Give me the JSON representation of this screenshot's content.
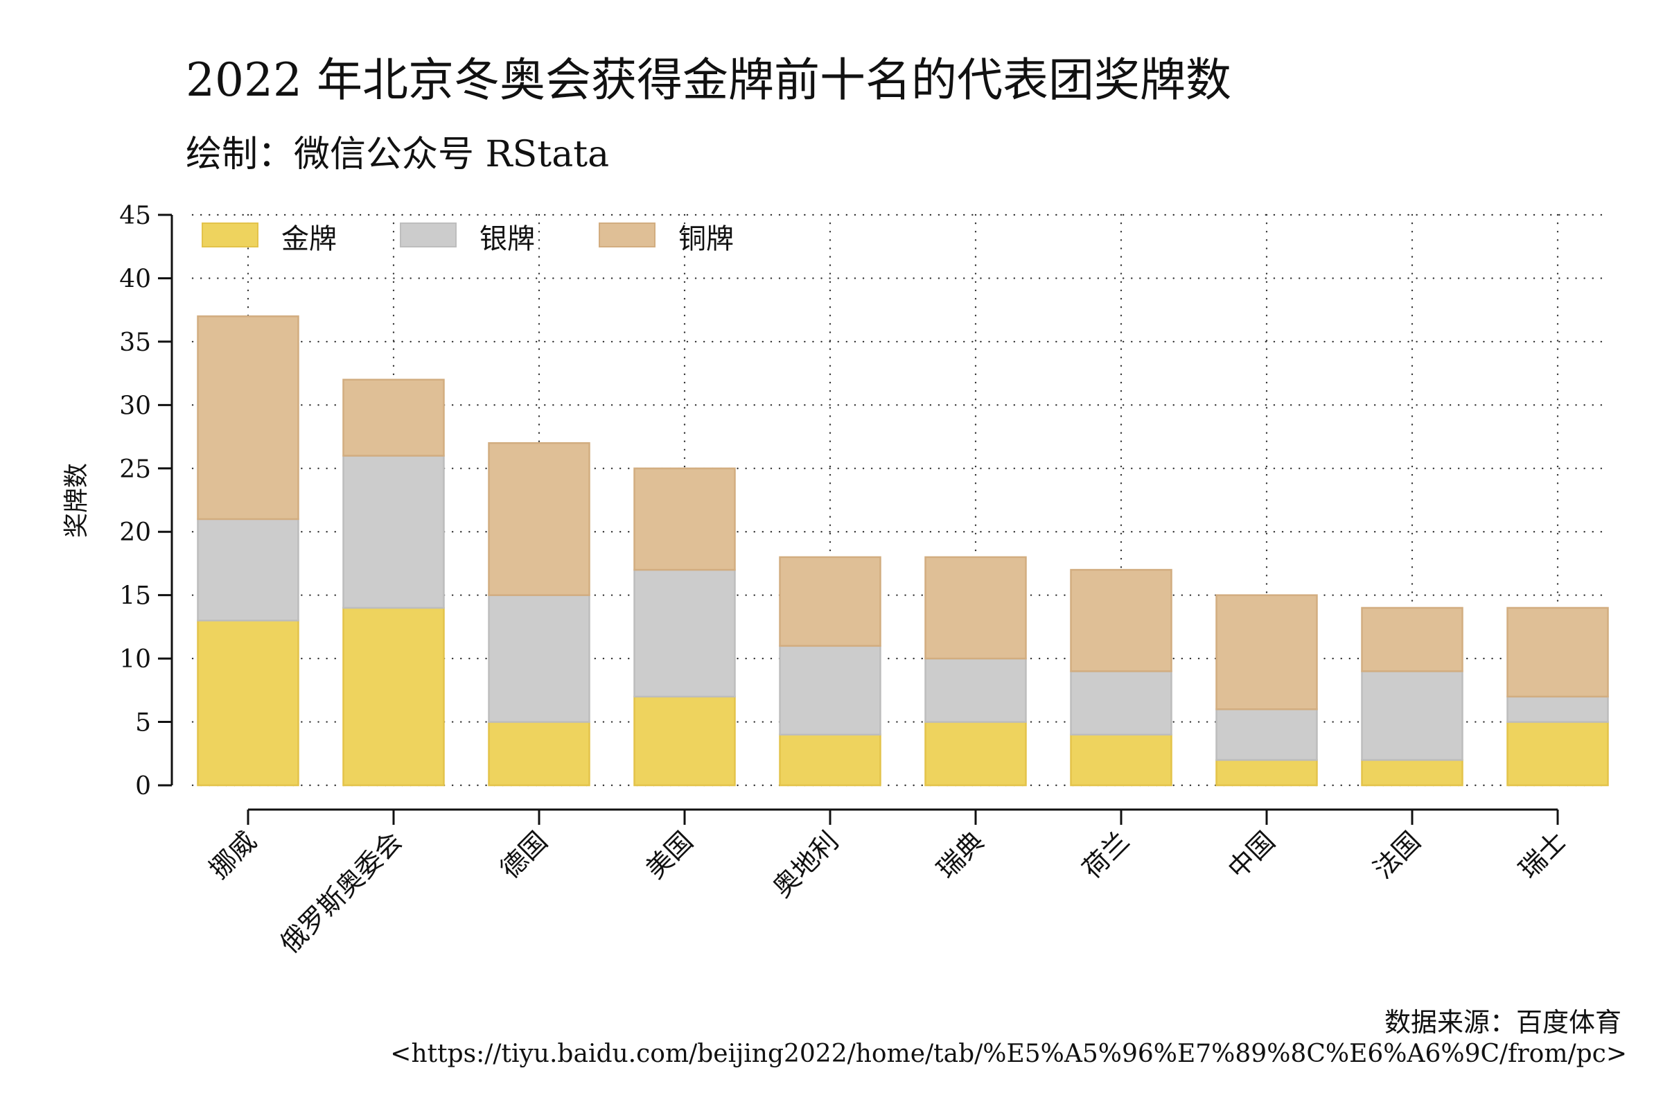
{
  "chart_data": {
    "type": "bar",
    "stacked": true,
    "title": "2022 年北京冬奥会获得金牌前十名的代表团奖牌数",
    "subtitle": "绘制：微信公众号 RStata",
    "xlabel": "",
    "ylabel": "奖牌数",
    "ylim": [
      0,
      45
    ],
    "yticks": [
      0,
      5,
      10,
      15,
      20,
      25,
      30,
      35,
      40,
      45
    ],
    "grid": true,
    "legend_position": "top-left",
    "categories": [
      "挪威",
      "俄罗斯奥委会",
      "德国",
      "美国",
      "奥地利",
      "瑞典",
      "荷兰",
      "中国",
      "法国",
      "瑞士"
    ],
    "series": [
      {
        "name": "金牌",
        "color": "#eed35e",
        "values": [
          13,
          14,
          5,
          7,
          4,
          5,
          4,
          2,
          2,
          5
        ]
      },
      {
        "name": "银牌",
        "color": "#cccccc",
        "values": [
          8,
          12,
          10,
          10,
          7,
          5,
          5,
          4,
          7,
          2
        ]
      },
      {
        "name": "铜牌",
        "color": "#dfbf96",
        "values": [
          16,
          6,
          12,
          8,
          7,
          8,
          8,
          9,
          5,
          7
        ]
      }
    ]
  },
  "source": {
    "line1": "数据来源：百度体育",
    "line2": "<https://tiyu.baidu.com/beijing2022/home/tab/%E5%A5%96%E7%89%8C%E6%A6%9C/from/pc>"
  }
}
